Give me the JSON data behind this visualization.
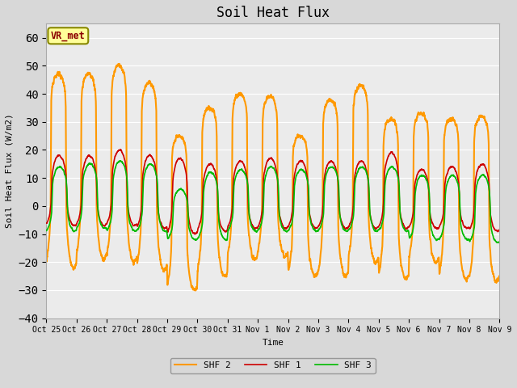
{
  "title": "Soil Heat Flux",
  "ylabel": "Soil Heat Flux (W/m2)",
  "xlabel": "Time",
  "ylim": [
    -40,
    65
  ],
  "yticks": [
    -40,
    -30,
    -20,
    -10,
    0,
    10,
    20,
    30,
    40,
    50,
    60
  ],
  "bg_color": "#d8d8d8",
  "plot_bg_color": "#ebebeb",
  "line_colors": {
    "SHF 1": "#cc0000",
    "SHF 2": "#ff9900",
    "SHF 3": "#00bb00"
  },
  "line_widths": {
    "SHF 1": 1.2,
    "SHF 2": 1.5,
    "SHF 3": 1.2
  },
  "annotation_text": "VR_met",
  "xtick_labels": [
    "Oct 25",
    "Oct 26",
    "Oct 27",
    "Oct 28",
    "Oct 29",
    "Oct 30",
    "Oct 31",
    "Nov 1",
    "Nov 2",
    "Nov 3",
    "Nov 4",
    "Nov 5",
    "Nov 6",
    "Nov 7",
    "Nov 8",
    "Nov 9"
  ],
  "grid_color": "#ffffff",
  "title_fontsize": 12,
  "font_family": "DejaVu Sans Mono",
  "shf2_peaks": [
    47,
    47,
    50,
    44,
    25,
    35,
    40,
    39,
    25,
    38,
    43,
    31,
    33,
    31,
    32
  ],
  "shf2_troughs": [
    -22,
    -19,
    -20,
    -23,
    -30,
    -25,
    -19,
    -18,
    -25,
    -25,
    -20,
    -26,
    -20,
    -26,
    -27
  ],
  "shf1_peaks": [
    18,
    18,
    20,
    18,
    17,
    15,
    16,
    17,
    16,
    16,
    16,
    19,
    13,
    14,
    15
  ],
  "shf1_troughs": [
    -7,
    -7,
    -7,
    -8,
    -10,
    -9,
    -8,
    -8,
    -8,
    -8,
    -8,
    -8,
    -8,
    -8,
    -9
  ],
  "shf3_peaks": [
    14,
    15,
    16,
    15,
    6,
    12,
    13,
    14,
    13,
    14,
    14,
    14,
    11,
    11,
    11
  ],
  "shf3_troughs": [
    -9,
    -8,
    -9,
    -9,
    -12,
    -12,
    -9,
    -9,
    -9,
    -9,
    -9,
    -9,
    -12,
    -12,
    -13
  ]
}
